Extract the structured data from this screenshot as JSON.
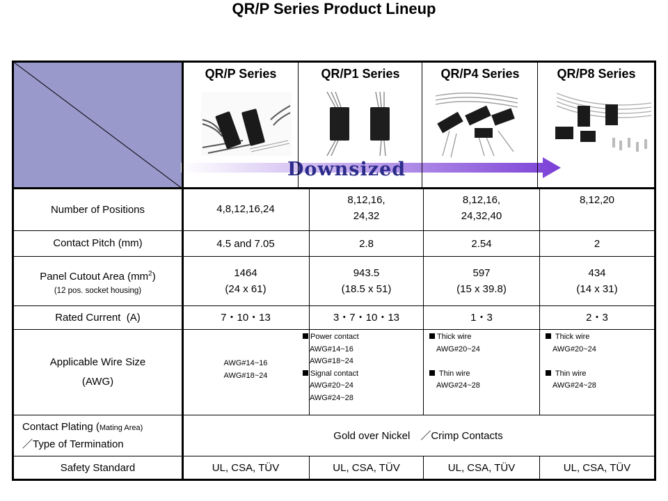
{
  "title": "QR/P Series Product Lineup",
  "chart_data": {
    "type": "table",
    "columns": [
      "QR/P Series",
      "QR/P1 Series",
      "QR/P4 Series",
      "QR/P8 Series"
    ],
    "arrow_label": "Downsized",
    "rows": [
      {
        "label": "Number of Positions",
        "values": [
          [
            "4,8,12,16,24"
          ],
          [
            "8,12,16,",
            "24,32"
          ],
          [
            "8,12,16,",
            "24,32,40"
          ],
          [
            "8,12,20"
          ]
        ]
      },
      {
        "label": "Contact Pitch (mm)",
        "values": [
          [
            "4.5 and 7.05"
          ],
          [
            "2.8"
          ],
          [
            "2.54"
          ],
          [
            "2"
          ]
        ]
      },
      {
        "label": "Panel Cutout Area (mm",
        "label_sup": "2",
        "label_tail": ")",
        "sublabel": "(12 pos. socket housing)",
        "values": [
          [
            "1464",
            "(24 x 61)"
          ],
          [
            "943.5",
            "(18.5 x 51)"
          ],
          [
            "597",
            "(15 x 39.8)"
          ],
          [
            "434",
            "(14 x 31)"
          ]
        ]
      },
      {
        "label": "Rated Current  (A)",
        "values": [
          [
            "7・10・13"
          ],
          [
            "3・7・10・13"
          ],
          [
            "1・3"
          ],
          [
            "2・3"
          ]
        ]
      },
      {
        "label": "Applicable Wire Size",
        "label2": "(AWG)",
        "values": [
          [
            {
              "t": "AWG#14~16"
            },
            {
              "t": "AWG#18~24"
            }
          ],
          [
            {
              "t": "Power contact",
              "sq": true
            },
            {
              "t": "AWG#14~16",
              "ind": true
            },
            {
              "t": "AWG#18~24",
              "ind": true
            },
            {
              "t": "Signal contact",
              "sq": true
            },
            {
              "t": "AWG#20~24",
              "ind": true
            },
            {
              "t": "AWG#24~28",
              "ind": true
            }
          ],
          [
            {
              "t": "Thick wire",
              "sq": true
            },
            {
              "t": "AWG#20~24",
              "ind": true
            },
            {
              "t": ""
            },
            {
              "t": " Thin wire",
              "sq": true
            },
            {
              "t": "AWG#24~28",
              "ind": true
            }
          ],
          [
            {
              "t": " Thick wire",
              "sq": true
            },
            {
              "t": "AWG#20~24",
              "ind": true
            },
            {
              "t": ""
            },
            {
              "t": " Thin wire",
              "sq": true
            },
            {
              "t": "AWG#24~28",
              "ind": true
            }
          ]
        ]
      },
      {
        "label": "Contact Plating (",
        "label_small": "Mating Area)",
        "label2": "／Type of Termination",
        "merged_value": "Gold over Nickel　／Crimp Contacts"
      },
      {
        "label": "Safety Standard",
        "values": [
          [
            "UL, CSA, TÜV"
          ],
          [
            "UL, CSA, TÜV"
          ],
          [
            "UL, CSA, TÜV"
          ],
          [
            "UL, CSA, TÜV"
          ]
        ]
      }
    ]
  },
  "colors": {
    "corner_fill": "#9999cc",
    "arrow_start": "#ffffff",
    "arrow_end": "#7a3fd6",
    "text": "#000000"
  }
}
